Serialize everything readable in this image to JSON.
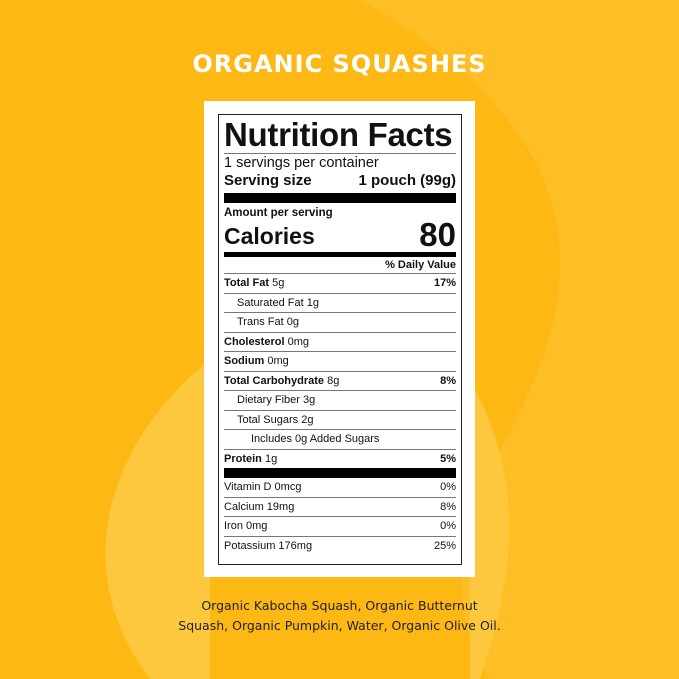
{
  "colors": {
    "background": "#fdb813",
    "swoosh": "#fec83e",
    "title": "#ffffff"
  },
  "title": "ORGANIC SQUASHES",
  "label": {
    "heading": "Nutrition Facts",
    "servings": "1 servings per container",
    "serving_size_label": "Serving size",
    "serving_size_value": "1 pouch (99g)",
    "amount_per_serving": "Amount per serving",
    "calories_label": "Calories",
    "calories_value": "80",
    "daily_value_header": "% Daily Value",
    "rows": [
      {
        "name": "Total Fat",
        "amount": "5g",
        "dv": "17%"
      },
      {
        "name": "Saturated Fat",
        "amount": "1g",
        "dv": ""
      },
      {
        "name": "Trans Fat",
        "amount": "0g",
        "dv": ""
      },
      {
        "name": "Cholesterol",
        "amount": "0mg",
        "dv": ""
      },
      {
        "name": "Sodium",
        "amount": "0mg",
        "dv": ""
      },
      {
        "name": "Total Carbohydrate",
        "amount": "8g",
        "dv": "8%"
      },
      {
        "name": "Dietary Fiber",
        "amount": "3g",
        "dv": ""
      },
      {
        "name": "Total Sugars",
        "amount": "2g",
        "dv": ""
      },
      {
        "name": "Includes 0g Added Sugars",
        "amount": "",
        "dv": ""
      },
      {
        "name": "Protein",
        "amount": "1g",
        "dv": "5%"
      }
    ],
    "vitamins": [
      {
        "name": "Vitamin D",
        "amount": "0mcg",
        "dv": "0%"
      },
      {
        "name": "Calcium",
        "amount": "19mg",
        "dv": "8%"
      },
      {
        "name": "Iron",
        "amount": "0mg",
        "dv": "0%"
      },
      {
        "name": "Potassium",
        "amount": "176mg",
        "dv": "25%"
      }
    ]
  },
  "ingredients": [
    "Organic Kabocha Squash, Organic Butternut",
    "Squash, Organic Pumpkin, Water, Organic Olive Oil."
  ]
}
